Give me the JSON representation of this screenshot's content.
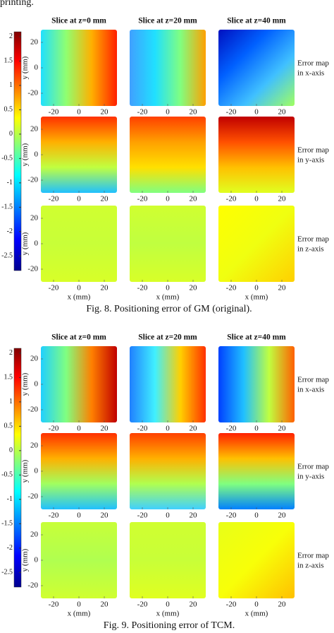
{
  "header_text": "printing.",
  "figures": [
    {
      "caption": "Fig. 8. Positioning error of GM (original).",
      "column_titles": [
        "Slice at z=0 mm",
        "Slice at z=20 mm",
        "Slice at z=40 mm"
      ],
      "row_labels": [
        [
          "Error map",
          "in x-axis"
        ],
        [
          "Error map",
          "in y-axis"
        ],
        [
          "Error map",
          "in z-axis"
        ]
      ],
      "y_label": "y (mm)",
      "x_label": "x (mm)",
      "xlim": [
        -30,
        30
      ],
      "ylim": [
        -30,
        30
      ],
      "xticks": [
        -20,
        0,
        20
      ],
      "yticks": [
        20,
        0,
        -20
      ],
      "clim": [
        -2.8,
        2.1
      ],
      "colorbar_ticks": [
        2,
        1.5,
        1,
        0.5,
        0,
        -0.5,
        -1,
        -1.5,
        -2,
        -2.5
      ]
    },
    {
      "caption": "Fig. 9. Positioning error of TCM.",
      "column_titles": [
        "Slice at z=0 mm",
        "Slice at z=20 mm",
        "Slice at z=40 mm"
      ],
      "row_labels": [
        [
          "Error map",
          "in x-axis"
        ],
        [
          "Error map",
          "in y-axis"
        ],
        [
          "Error map",
          "in z-axis"
        ]
      ],
      "y_label": "y (mm)",
      "x_label": "x (mm)",
      "xlim": [
        -30,
        30
      ],
      "ylim": [
        -30,
        30
      ],
      "xticks": [
        -20,
        0,
        20
      ],
      "yticks": [
        20,
        0,
        -20
      ],
      "clim": [
        -2.8,
        2.1
      ],
      "colorbar_ticks": [
        2,
        1.5,
        1,
        0.5,
        0,
        -0.5,
        -1,
        -1.5,
        -2,
        -2.5
      ]
    }
  ]
}
